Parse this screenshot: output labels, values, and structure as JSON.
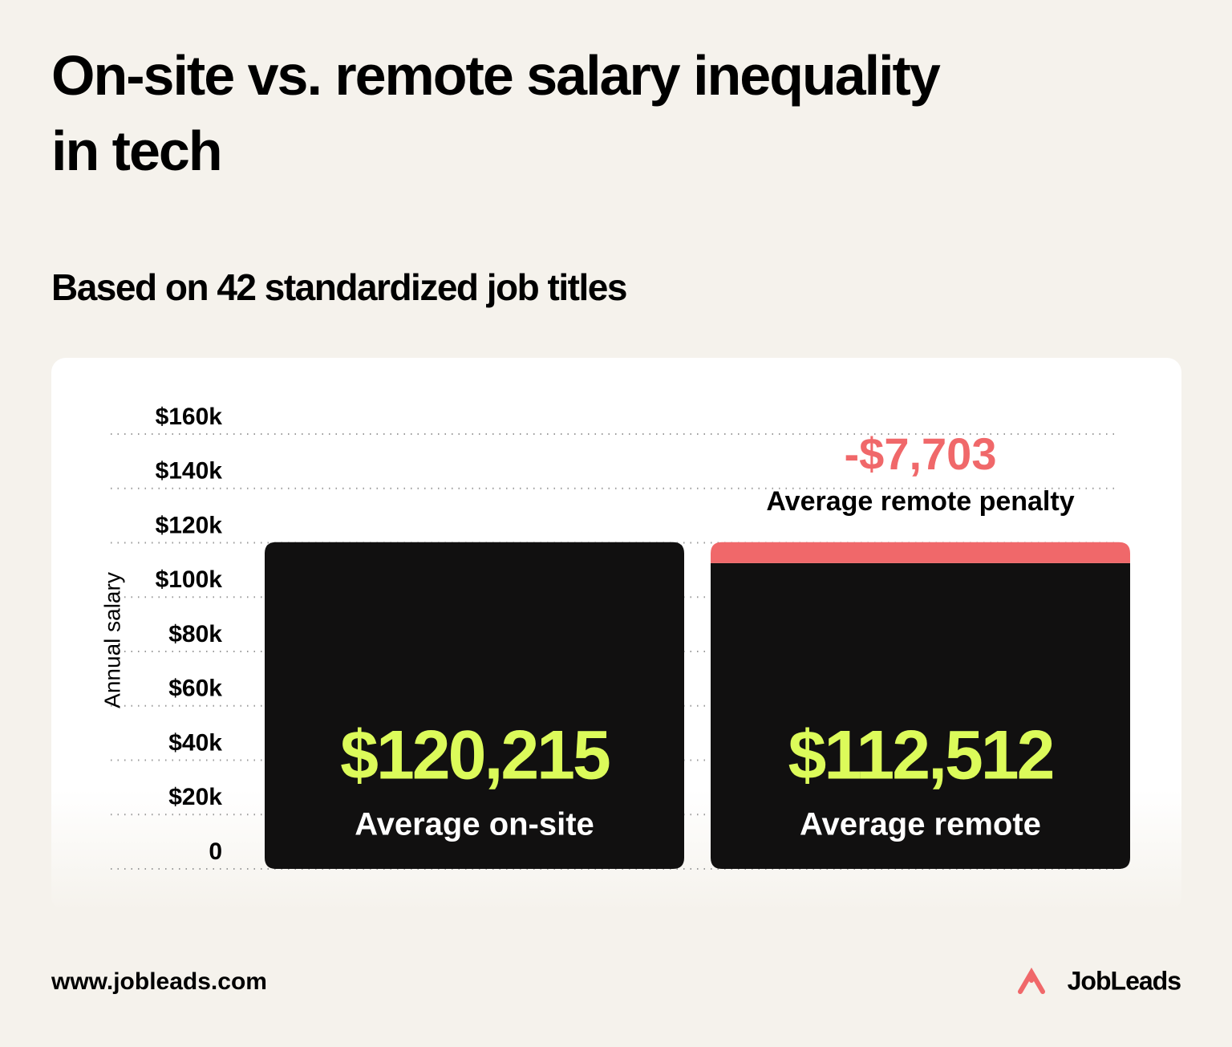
{
  "chart_data": {
    "type": "bar",
    "title": "On-site vs. remote salary inequality in tech",
    "subtitle": "Based on 42 standardized job titles",
    "y_label": "Annual salary",
    "categories": [
      "Average on-site",
      "Average remote"
    ],
    "values": [
      120215,
      112512
    ],
    "value_labels": [
      "$120,215",
      "$112,512"
    ],
    "color": "#111010",
    "value_label_color": "#dcfb5a",
    "penalty": {
      "label": "Average remote penalty",
      "value": -7703,
      "value_label": "-$7,703",
      "color": "#f0686a"
    },
    "ylim": [
      0,
      160000
    ],
    "yticks": [
      0,
      {
        "value": 20000,
        "label": "$20k"
      },
      {
        "value": 40000,
        "label": "$40k"
      },
      {
        "value": 60000,
        "label": "$60k"
      },
      {
        "value": 80000,
        "label": "$80k"
      },
      {
        "value": 100000,
        "label": "$100k"
      },
      {
        "value": 120000,
        "label": "$120k"
      },
      {
        "value": 140000,
        "label": "$140k"
      },
      {
        "value": 160000,
        "label": "$160k"
      }
    ],
    "grid": true
  },
  "footer": {
    "url": "www.jobleads.com",
    "brand": "JobLeads"
  }
}
